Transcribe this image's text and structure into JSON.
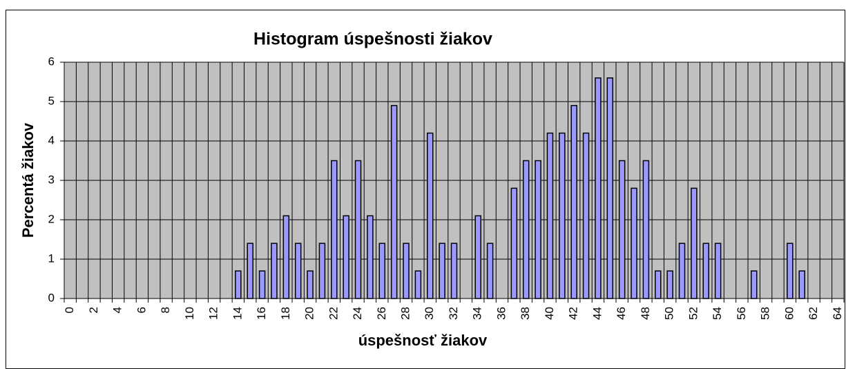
{
  "chart_data": {
    "type": "bar",
    "title": "Histogram úspešnosti žiakov",
    "x_label": "úspešnosť žiakov",
    "y_label": "Percentá žiakov",
    "categories": [
      "0",
      null,
      "2",
      null,
      "4",
      null,
      "6",
      null,
      "8",
      null,
      "10",
      null,
      "12",
      null,
      "14",
      null,
      "16",
      null,
      "18",
      null,
      "20",
      null,
      "22",
      null,
      "24",
      null,
      "26",
      null,
      "28",
      null,
      "30",
      null,
      "32",
      null,
      "34",
      null,
      "36",
      null,
      "38",
      null,
      "40",
      null,
      "42",
      null,
      "44",
      null,
      "46",
      null,
      "48",
      null,
      "50",
      null,
      "52",
      null,
      "54",
      null,
      "56",
      null,
      "58",
      null,
      "60",
      null,
      "62",
      null,
      "64"
    ],
    "values": [
      0,
      0,
      0,
      0,
      0,
      0,
      0,
      0,
      0,
      0,
      0,
      0,
      0,
      0,
      0.7,
      1.4,
      0.7,
      1.4,
      2.1,
      1.4,
      0.7,
      1.4,
      3.5,
      2.1,
      3.5,
      2.1,
      1.4,
      4.9,
      1.4,
      0.7,
      4.2,
      1.4,
      1.4,
      0,
      2.1,
      1.4,
      0,
      2.8,
      3.5,
      3.5,
      4.2,
      4.2,
      4.9,
      4.2,
      5.6,
      5.6,
      3.5,
      2.8,
      3.5,
      0.7,
      0.7,
      1.4,
      2.8,
      1.4,
      1.4,
      0,
      0,
      0.7,
      0,
      0,
      1.4,
      0.7,
      0,
      0,
      0
    ],
    "color": "#9999ff",
    "ylim": [
      0,
      6
    ],
    "yticks": [
      0,
      1,
      2,
      3,
      4,
      5,
      6
    ],
    "grid": true
  }
}
